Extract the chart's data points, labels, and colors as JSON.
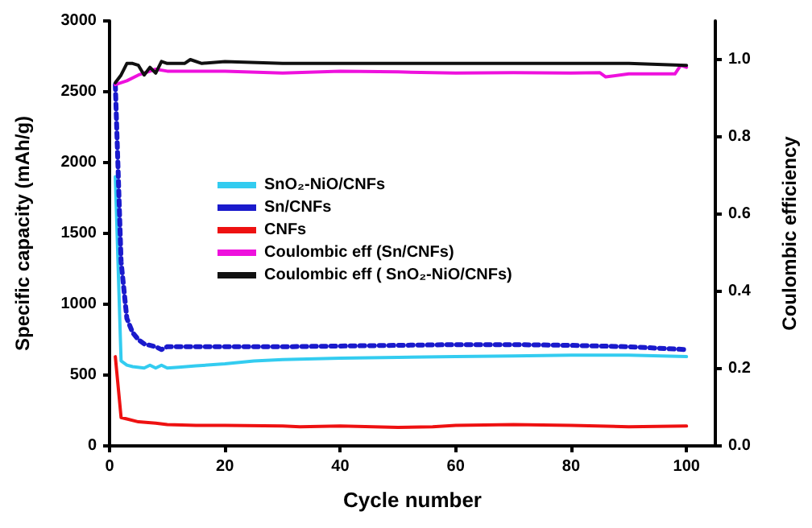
{
  "chart_data": {
    "type": "line",
    "xlabel": "Cycle number",
    "ylabel": "Specific capacity (mAh/g)",
    "y2label": "Coulombic efficiency",
    "xlim": [
      0,
      105
    ],
    "xticks": [
      0,
      20,
      40,
      60,
      80,
      100
    ],
    "ylim": [
      0,
      3000
    ],
    "yticks": [
      0,
      500,
      1000,
      1500,
      2000,
      2500,
      3000
    ],
    "y2lim": [
      0,
      1.1
    ],
    "y2ticks": [
      {
        "value": 0,
        "label": "0.0"
      },
      0.2,
      0.4,
      0.6,
      0.8,
      {
        "value": 1,
        "label": "1.0"
      }
    ],
    "grid": false,
    "legend": "left",
    "marker": "none",
    "series": [
      {
        "name": "SnO₂-NiO/CNFs",
        "color": "#33ccf0",
        "line_style": "solid",
        "x": [
          1,
          2,
          3,
          4,
          6,
          7,
          8,
          9,
          10,
          12,
          15,
          20,
          25,
          30,
          40,
          50,
          60,
          70,
          80,
          90,
          100
        ],
        "values": [
          1900,
          600,
          570,
          560,
          550,
          570,
          550,
          570,
          550,
          555,
          565,
          580,
          600,
          610,
          620,
          625,
          630,
          635,
          640,
          640,
          630
        ]
      },
      {
        "name": "Sn/CNFs",
        "color": "#1a1acc",
        "line_style": "dotted",
        "x": [
          1,
          2,
          3,
          4,
          5,
          6,
          8,
          9,
          10,
          15,
          20,
          30,
          40,
          50,
          60,
          70,
          80,
          90,
          100
        ],
        "values": [
          2550,
          1300,
          900,
          800,
          750,
          720,
          700,
          680,
          700,
          700,
          700,
          700,
          705,
          710,
          715,
          715,
          710,
          700,
          680
        ]
      },
      {
        "name": "CNFs",
        "color": "#ee1111",
        "line_style": "solid",
        "x": [
          1,
          2,
          3,
          5,
          8,
          10,
          15,
          20,
          30,
          33,
          40,
          50,
          56,
          60,
          70,
          80,
          90,
          100
        ],
        "values": [
          630,
          200,
          190,
          170,
          160,
          150,
          145,
          145,
          140,
          135,
          140,
          130,
          135,
          145,
          150,
          145,
          135,
          140
        ]
      },
      {
        "name": "Coulombic eff (Sn/CNFs)",
        "color": "#ee11dd",
        "line_style": "solid",
        "axis": "y2",
        "x": [
          1,
          3,
          5,
          8,
          10,
          15,
          20,
          30,
          40,
          50,
          60,
          70,
          80,
          85,
          86,
          90,
          98,
          99,
          100
        ],
        "values": [
          0.935,
          0.945,
          0.96,
          0.975,
          0.97,
          0.97,
          0.97,
          0.965,
          0.97,
          0.968,
          0.965,
          0.966,
          0.965,
          0.966,
          0.955,
          0.963,
          0.963,
          0.985,
          0.98
        ]
      },
      {
        "name": "Coulombic eff ( SnO₂-NiO/CNFs)",
        "color": "#111111",
        "line_style": "solid",
        "axis": "y2",
        "x": [
          1,
          2,
          3,
          4,
          5,
          6,
          7,
          8,
          9,
          10,
          13,
          14,
          16,
          20,
          30,
          40,
          50,
          60,
          70,
          80,
          90,
          100
        ],
        "values": [
          0.94,
          0.96,
          0.99,
          0.99,
          0.985,
          0.96,
          0.98,
          0.965,
          0.995,
          0.99,
          0.99,
          1.0,
          0.99,
          0.995,
          0.99,
          0.99,
          0.99,
          0.99,
          0.99,
          0.99,
          0.99,
          0.985
        ]
      }
    ]
  }
}
